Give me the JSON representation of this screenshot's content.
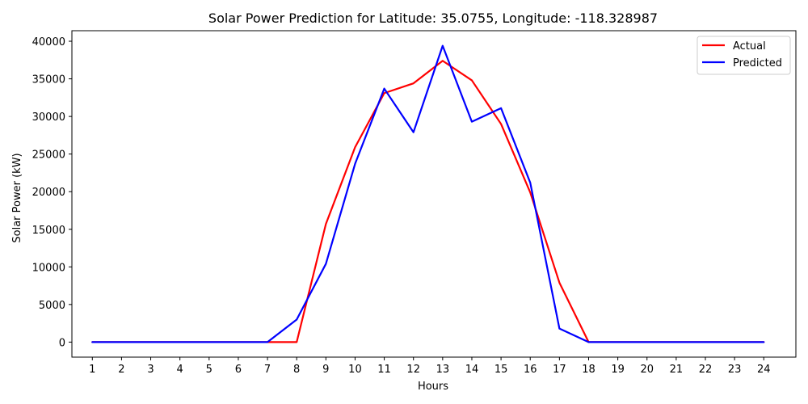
{
  "chart_data": {
    "type": "line",
    "title": "Solar Power Prediction for Latitude: 35.0755, Longitude: -118.328987",
    "xlabel": "Hours",
    "ylabel": "Solar Power (kW)",
    "x": [
      1,
      2,
      3,
      4,
      5,
      6,
      7,
      8,
      9,
      10,
      11,
      12,
      13,
      14,
      15,
      16,
      17,
      18,
      19,
      20,
      21,
      22,
      23,
      24
    ],
    "xticks": [
      "1",
      "2",
      "3",
      "4",
      "5",
      "6",
      "7",
      "8",
      "9",
      "10",
      "11",
      "12",
      "13",
      "14",
      "15",
      "16",
      "17",
      "18",
      "19",
      "20",
      "21",
      "22",
      "23",
      "24"
    ],
    "yticks": [
      "0",
      "5000",
      "10000",
      "15000",
      "20000",
      "25000",
      "30000",
      "35000",
      "40000"
    ],
    "xlim": [
      0.3,
      25.1
    ],
    "ylim": [
      -2000,
      41400
    ],
    "grid": false,
    "legend_position": "top-right",
    "series": [
      {
        "name": "Actual",
        "color": "#ff0000",
        "values": [
          0,
          0,
          0,
          0,
          0,
          0,
          0,
          0,
          15700,
          25900,
          33100,
          34400,
          37400,
          34800,
          29000,
          19900,
          7900,
          0,
          0,
          0,
          0,
          0,
          0,
          0
        ]
      },
      {
        "name": "Predicted",
        "color": "#0000ff",
        "values": [
          0,
          0,
          0,
          0,
          0,
          0,
          0,
          3000,
          10400,
          23700,
          33700,
          27900,
          39400,
          29300,
          31100,
          21200,
          1800,
          0,
          0,
          0,
          0,
          0,
          0,
          0
        ]
      }
    ]
  }
}
